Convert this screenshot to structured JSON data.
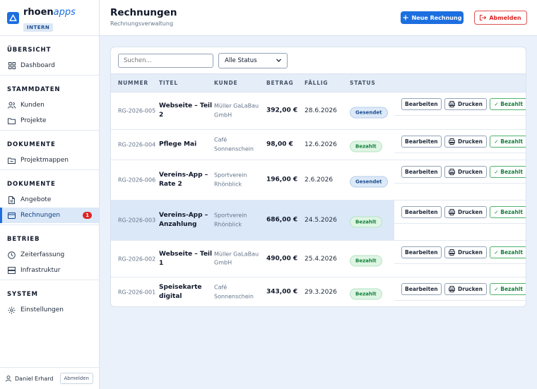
{
  "brand": {
    "name_main": "rhoen",
    "name_accent": "apps",
    "badge": "INTERN"
  },
  "sidebar": {
    "sections": [
      {
        "title": "ÜBERSICHT",
        "items": [
          {
            "label": "Dashboard",
            "icon": "grid-icon"
          }
        ]
      },
      {
        "title": "STAMMDATEN",
        "items": [
          {
            "label": "Kunden",
            "icon": "users-icon"
          },
          {
            "label": "Projekte",
            "icon": "folder-icon"
          }
        ]
      },
      {
        "title": "DOKUMENTE",
        "items": [
          {
            "label": "Projektmappen",
            "icon": "folder-doc-icon"
          }
        ]
      },
      {
        "title": "DOKUMENTE",
        "items": [
          {
            "label": "Angebote",
            "icon": "document-icon"
          },
          {
            "label": "Rechnungen",
            "icon": "card-icon",
            "active": true,
            "count": "1"
          }
        ]
      },
      {
        "title": "BETRIEB",
        "items": [
          {
            "label": "Zeiterfassung",
            "icon": "clock-icon"
          },
          {
            "label": "Infrastruktur",
            "icon": "server-icon"
          }
        ]
      },
      {
        "title": "SYSTEM",
        "items": [
          {
            "label": "Einstellungen",
            "icon": "gear-icon"
          }
        ]
      }
    ],
    "footer": {
      "user": "Daniel Erhard",
      "logout": "Abmelden"
    }
  },
  "header": {
    "title": "Rechnungen",
    "subtitle": "Rechnungsverwaltung",
    "new_button": "Neue Rechnung",
    "logout_button": "Abmelden"
  },
  "filters": {
    "search_placeholder": "Suchen...",
    "status_selected": "Alle Status"
  },
  "table": {
    "headers": {
      "number": "NUMMER",
      "title": "TITEL",
      "customer": "KUNDE",
      "amount": "BETRAG",
      "due": "FÄLLIG",
      "status": "STATUS"
    },
    "action_labels": {
      "edit": "Bearbeiten",
      "print": "Drucken",
      "paid": "✓ Bezahlt"
    },
    "rows": [
      {
        "number": "RG-2026-005",
        "title": "Webseite – Teil 2",
        "customer": "Müller GaLaBau GmbH",
        "amount": "392,00 €",
        "due": "28.6.2026",
        "status": "Gesendet",
        "status_kind": "sent"
      },
      {
        "number": "RG-2026-004",
        "title": "Pflege Mai",
        "customer": "Café Sonnenschein",
        "amount": "98,00 €",
        "due": "12.6.2026",
        "status": "Bezahlt",
        "status_kind": "paid"
      },
      {
        "number": "RG-2026-006",
        "title": "Vereins-App – Rate 2",
        "customer": "Sportverein Rhönblick",
        "amount": "196,00 €",
        "due": "2.6.2026",
        "status": "Gesendet",
        "status_kind": "sent"
      },
      {
        "number": "RG-2026-003",
        "title": "Vereins-App – Anzahlung",
        "customer": "Sportverein Rhönblick",
        "amount": "686,00 €",
        "due": "24.5.2026",
        "status": "Bezahlt",
        "status_kind": "paid"
      },
      {
        "number": "RG-2026-002",
        "title": "Webseite – Teil 1",
        "customer": "Müller GaLaBau GmbH",
        "amount": "490,00 €",
        "due": "25.4.2026",
        "status": "Bezahlt",
        "status_kind": "paid"
      },
      {
        "number": "RG-2026-001",
        "title": "Speisekarte digital",
        "customer": "Café Sonnenschein",
        "amount": "343,00 €",
        "due": "29.3.2026",
        "status": "Bezahlt",
        "status_kind": "paid"
      }
    ]
  },
  "colors": {
    "accent": "#1d6fe0",
    "danger": "#dc2626",
    "success": "#15803d"
  }
}
